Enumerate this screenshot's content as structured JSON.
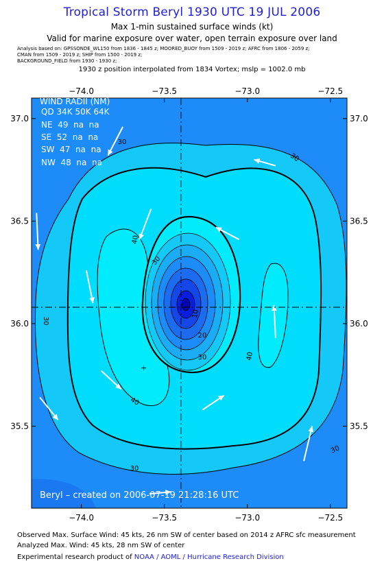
{
  "header": {
    "title": "Tropical Storm Beryl 1930 UTC 19 JUL 2006",
    "subtitle": "Max 1-min sustained surface winds (kt)",
    "validity": "Valid for marine exposure over water, open terrain exposure over land",
    "analysis_lines": [
      "Analysis based on:  GPSSONDE_WL150 from 1836 - 1845 z;   MOORED_BUOY from 1509 - 2019 z;   AFRC from 1806 - 2059 z;",
      "CMAN from 1509 - 2019 z;  SHIP from 1500 - 2019 z;",
      "BACKGROUND_FIELD from 1930 - 1930 z;"
    ],
    "position_note": "1930 z position interpolated from 1834 Vortex; mslp = 1002.0 mb"
  },
  "wind_radii": {
    "title": "WIND RADII (NM)",
    "header": "QD 34K 50K 64K",
    "rows": [
      "NE  49  na  na",
      "SE  52  na  na",
      "SW  47  na  na",
      "NW  48  na  na"
    ]
  },
  "credit": "Beryl – created on 2006-07-19 21:28:16 UTC",
  "footer": {
    "line1": "Observed Max. Surface Wind: 45 kts, 26 nm SW of center based on 2014 z AFRC sfc measurement",
    "line2": "Analyzed Max. Wind: 45 kts, 28 nm SW of center",
    "line3_prefix": "Experimental research product of ",
    "line3_link": "NOAA / AOML / Hurricane Research Division"
  },
  "colors": {
    "title": "#1f1fd0",
    "band_outer": "#1e8cf8",
    "band_30_40": "#14c8f8",
    "band_40_45": "#00ecfc",
    "core_dark": "#0a1ee0",
    "contour": "#000000",
    "vector": "#ffffff"
  },
  "chart_data": {
    "type": "contour",
    "x_ticks": [
      "−74.0",
      "−73.5",
      "−73.0",
      "−72.5"
    ],
    "y_ticks": [
      "37.0",
      "36.5",
      "36.0",
      "35.5"
    ],
    "xlim": [
      -74.3,
      -72.4
    ],
    "ylim": [
      35.1,
      37.1
    ],
    "center": {
      "lon": -73.4,
      "lat": 36.08
    },
    "contour_labels": [
      "30",
      "30",
      "30",
      "30",
      "30",
      "40",
      "40",
      "40",
      "30",
      "20",
      "10",
      "30"
    ],
    "contour_levels": [
      30,
      34,
      40,
      45
    ],
    "wind_vectors": [
      {
        "lon": -73.75,
        "lat": 36.96,
        "dlon": -0.09,
        "dlat": -0.14
      },
      {
        "lon": -72.83,
        "lat": 36.77,
        "dlon": -0.13,
        "dlat": 0.03
      },
      {
        "lon": -74.27,
        "lat": 36.54,
        "dlon": 0.01,
        "dlat": -0.18
      },
      {
        "lon": -73.58,
        "lat": 36.56,
        "dlon": -0.07,
        "dlat": -0.15
      },
      {
        "lon": -73.05,
        "lat": 36.41,
        "dlon": -0.14,
        "dlat": 0.06
      },
      {
        "lon": -73.97,
        "lat": 36.26,
        "dlon": 0.04,
        "dlat": -0.16
      },
      {
        "lon": -72.83,
        "lat": 35.93,
        "dlon": -0.01,
        "dlat": 0.16
      },
      {
        "lon": -73.88,
        "lat": 35.77,
        "dlon": 0.12,
        "dlat": -0.09
      },
      {
        "lon": -73.27,
        "lat": 35.58,
        "dlon": 0.13,
        "dlat": 0.07
      },
      {
        "lon": -74.25,
        "lat": 35.64,
        "dlon": 0.11,
        "dlat": -0.11
      },
      {
        "lon": -72.66,
        "lat": 35.33,
        "dlon": 0.05,
        "dlat": 0.17
      },
      {
        "lon": -73.59,
        "lat": 35.17,
        "dlon": 0.13,
        "dlat": 0.01
      }
    ]
  }
}
